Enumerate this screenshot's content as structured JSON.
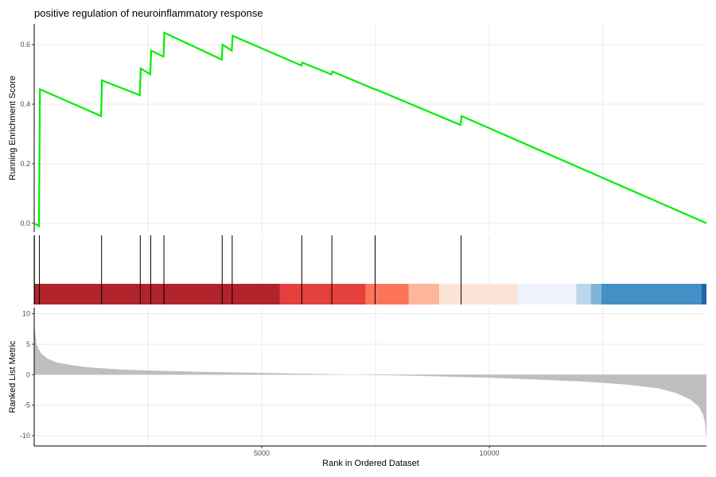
{
  "chart_data": {
    "type": "line",
    "title": "positive regulation of neuroinflammatory response",
    "xlabel": "Rank in Ordered Dataset",
    "xlim": [
      0,
      14771
    ],
    "x_ticks": [
      5000,
      10000
    ],
    "x_tick_labels": [
      "5000",
      "10000"
    ],
    "grid": true,
    "legend": "none",
    "colors": {
      "line": "#00ee00",
      "fill": "#bebebe",
      "hit": "#000000"
    },
    "running_score": {
      "ylabel": "Running Enrichment Score",
      "ylim": [
        -0.03,
        0.67
      ],
      "y_ticks": [
        0.0,
        0.2,
        0.4,
        0.6
      ],
      "y_tick_labels": [
        "0.0",
        "0.2",
        "0.4",
        "0.6"
      ],
      "x": [
        0,
        105,
        125,
        1470,
        1490,
        2320,
        2340,
        2550,
        2570,
        2840,
        2860,
        4120,
        4140,
        4340,
        4360,
        5870,
        5890,
        6530,
        6550,
        7480,
        7500,
        9370,
        9390,
        14771
      ],
      "y": [
        0.0,
        -0.01,
        0.45,
        0.36,
        0.48,
        0.43,
        0.52,
        0.5,
        0.58,
        0.56,
        0.64,
        0.55,
        0.6,
        0.58,
        0.63,
        0.53,
        0.54,
        0.5,
        0.51,
        0.45,
        0.45,
        0.33,
        0.36,
        0.0
      ]
    },
    "hits": [
      5,
      115,
      1480,
      2330,
      2560,
      2850,
      4130,
      4350,
      5880,
      6540,
      7490,
      9380
    ],
    "color_bar": [
      {
        "from": 0,
        "to": 5400,
        "color": "#b2242b"
      },
      {
        "from": 5400,
        "to": 7280,
        "color": "#e4403d"
      },
      {
        "from": 7280,
        "to": 8230,
        "color": "#fc7559"
      },
      {
        "from": 8230,
        "to": 8900,
        "color": "#fdb59c"
      },
      {
        "from": 8900,
        "to": 10630,
        "color": "#fde3d6"
      },
      {
        "from": 10630,
        "to": 11910,
        "color": "#eef3fb"
      },
      {
        "from": 11910,
        "to": 12230,
        "color": "#bcd7ea"
      },
      {
        "from": 12230,
        "to": 12460,
        "color": "#7fb4d9"
      },
      {
        "from": 12460,
        "to": 14660,
        "color": "#4290c6"
      },
      {
        "from": 14660,
        "to": 14771,
        "color": "#1e65a9"
      }
    ],
    "ranked_metric": {
      "ylabel": "Ranked List Metric",
      "ylim": [
        -11.7,
        11.0
      ],
      "y_ticks": [
        10,
        5,
        0,
        -5,
        -10
      ],
      "y_tick_labels": [
        "10",
        "5",
        "0",
        "-5",
        "-10"
      ],
      "x": [
        0,
        50,
        150,
        300,
        500,
        800,
        1200,
        1800,
        2500,
        3500,
        5000,
        7000,
        8500,
        10000,
        11000,
        12000,
        13000,
        13700,
        14100,
        14400,
        14600,
        14700,
        14740,
        14771
      ],
      "y": [
        8.5,
        5.0,
        3.5,
        2.6,
        2.0,
        1.6,
        1.2,
        0.9,
        0.7,
        0.5,
        0.3,
        0.0,
        -0.2,
        -0.5,
        -0.8,
        -1.1,
        -1.6,
        -2.2,
        -3.0,
        -4.0,
        -5.2,
        -6.6,
        -8.0,
        -10.7
      ]
    }
  }
}
